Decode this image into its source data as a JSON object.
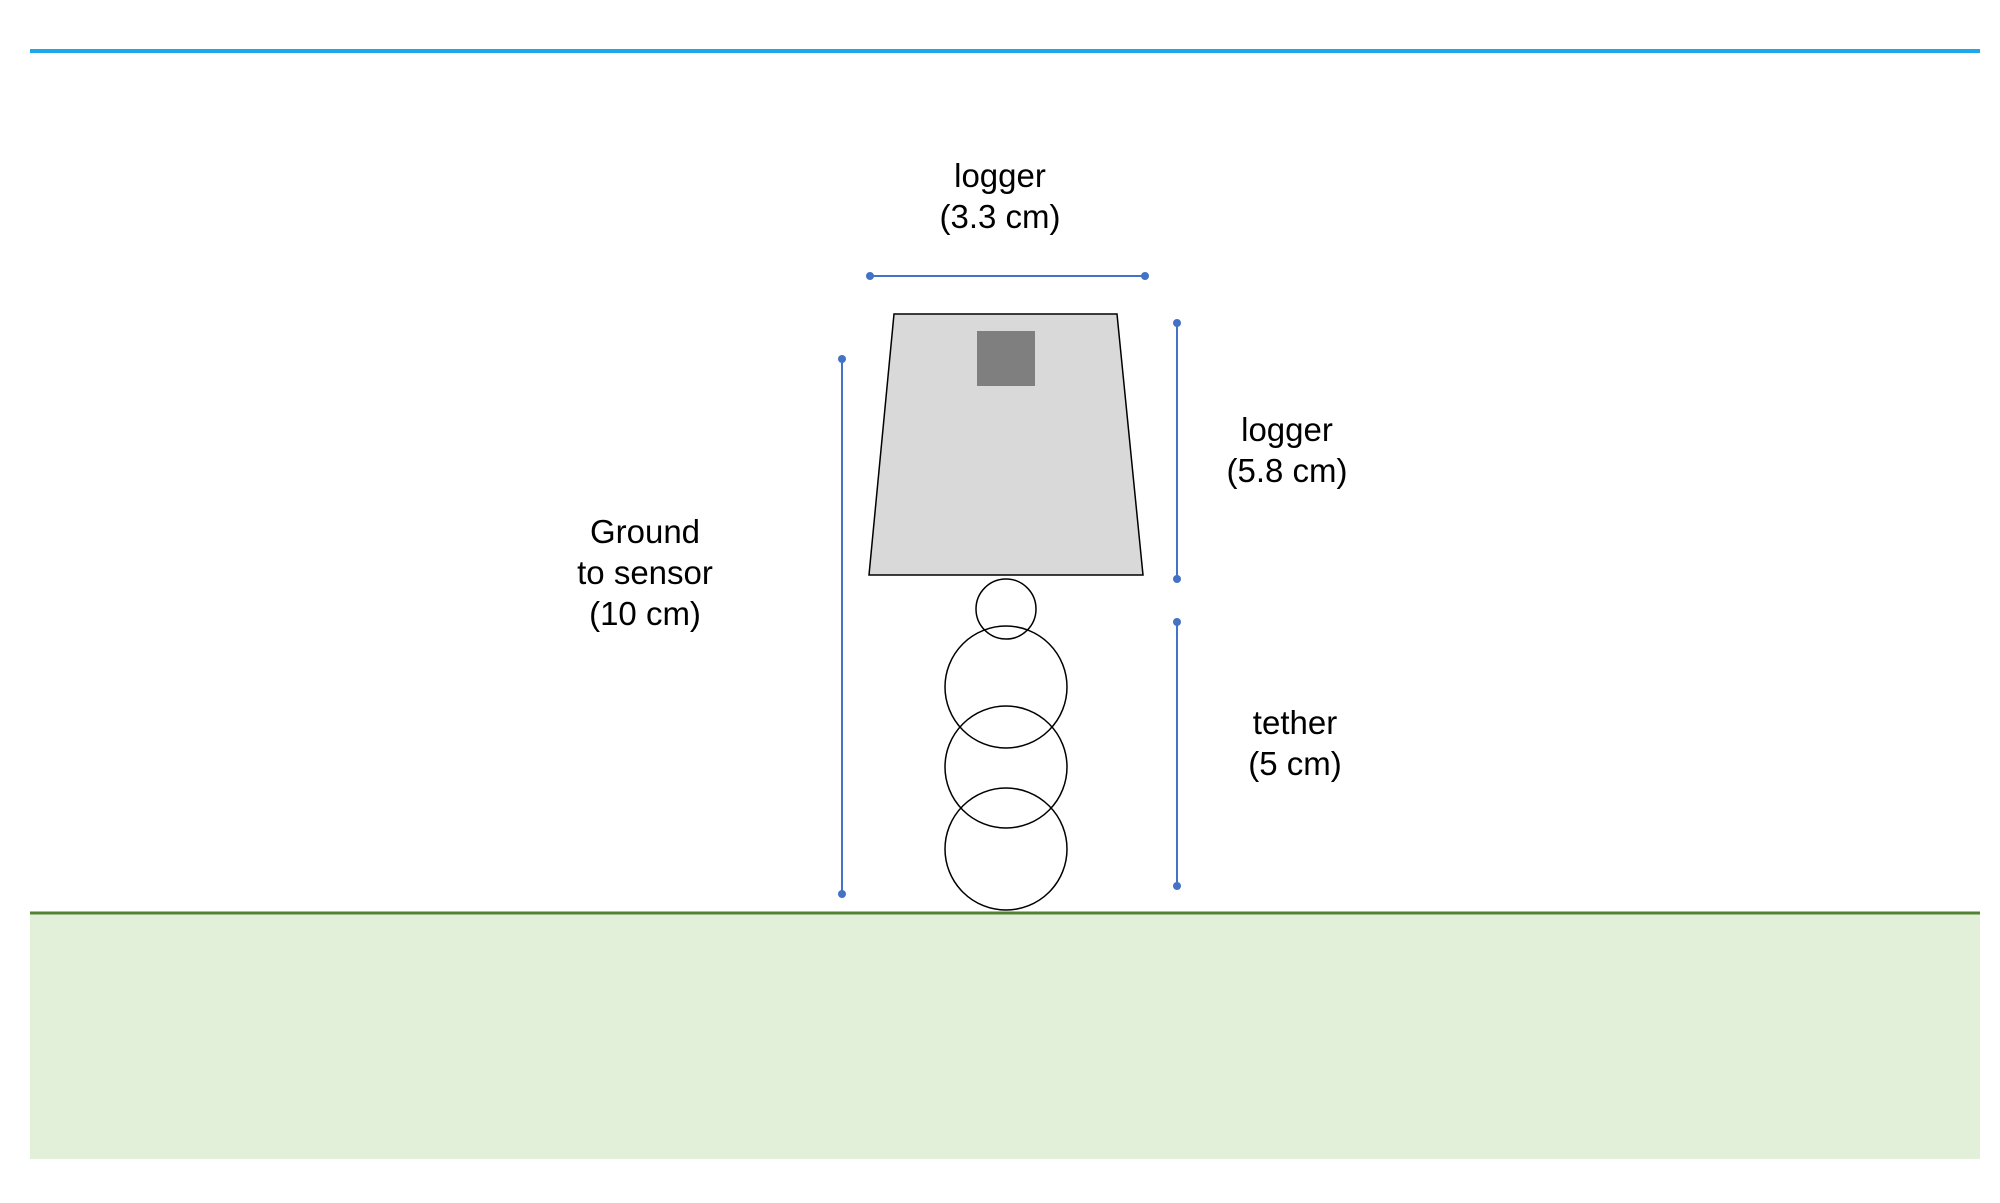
{
  "colors": {
    "sky_line": "#1fa7ec",
    "ground_line": "#548235",
    "ground_fill": "#e2efd9",
    "dimension": "#4472c4",
    "logger_fill": "#d9d9d9",
    "sensor_fill": "#7f7f7f",
    "outline": "#000000"
  },
  "labels": {
    "logger_width": {
      "line1": "logger",
      "line2": "(3.3 cm)"
    },
    "logger_height": {
      "line1": "logger",
      "line2": "(5.8 cm)"
    },
    "ground_to_sensor": {
      "line1": "Ground",
      "line2": "to sensor",
      "line3": "(10 cm)"
    },
    "tether": {
      "line1": "tether",
      "line2": "(5 cm)"
    }
  }
}
